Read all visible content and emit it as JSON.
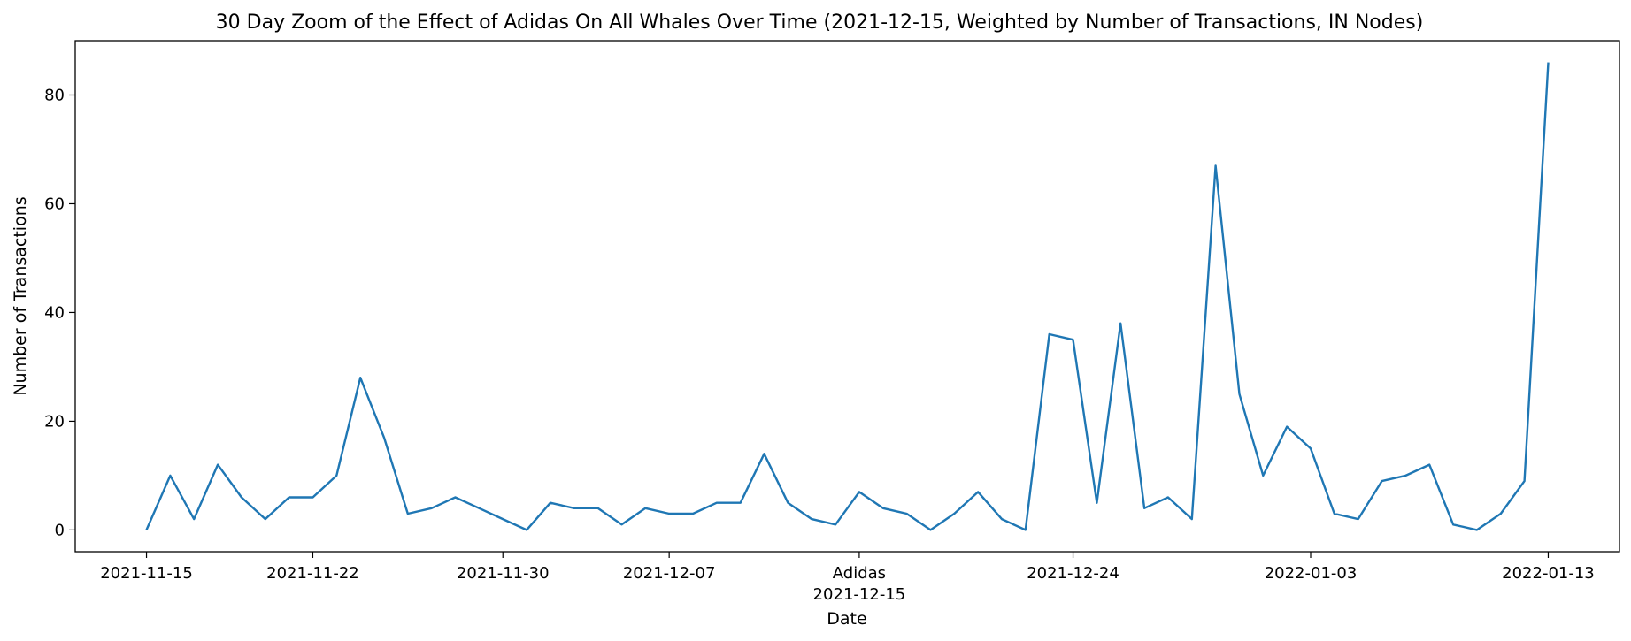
{
  "chart_data": {
    "type": "line",
    "title": "30 Day Zoom of the Effect of Adidas On All Whales Over Time (2021-12-15, Weighted by Number of Transactions, IN Nodes)",
    "xlabel": "Date",
    "ylabel": "Number of Transactions",
    "xlim": [
      "2021-11-12",
      "2022-01-16"
    ],
    "ylim": [
      -4,
      90
    ],
    "grid": false,
    "line_color": "#1f77b4",
    "x_ticks": [
      {
        "date": "2021-11-15",
        "label": "2021-11-15"
      },
      {
        "date": "2021-11-22",
        "label": "2021-11-22"
      },
      {
        "date": "2021-11-30",
        "label": "2021-11-30"
      },
      {
        "date": "2021-12-07",
        "label": "2021-12-07"
      },
      {
        "date": "2021-12-15",
        "label": "2021-12-15",
        "annotation": "Adidas"
      },
      {
        "date": "2021-12-24",
        "label": "2021-12-24"
      },
      {
        "date": "2022-01-03",
        "label": "2022-01-03"
      },
      {
        "date": "2022-01-13",
        "label": "2022-01-13"
      }
    ],
    "y_ticks": [
      0,
      20,
      40,
      60,
      80
    ],
    "series": [
      {
        "x": [
          "2021-11-15",
          "2021-11-16",
          "2021-11-17",
          "2021-11-18",
          "2021-11-19",
          "2021-11-20",
          "2021-11-21",
          "2021-11-22",
          "2021-11-23",
          "2021-11-24",
          "2021-11-25",
          "2021-11-26",
          "2021-11-27",
          "2021-11-28",
          "2021-11-29",
          "2021-11-30",
          "2021-12-01",
          "2021-12-02",
          "2021-12-03",
          "2021-12-04",
          "2021-12-05",
          "2021-12-06",
          "2021-12-07",
          "2021-12-08",
          "2021-12-09",
          "2021-12-10",
          "2021-12-11",
          "2021-12-12",
          "2021-12-13",
          "2021-12-14",
          "2021-12-15",
          "2021-12-16",
          "2021-12-17",
          "2021-12-18",
          "2021-12-19",
          "2021-12-20",
          "2021-12-21",
          "2021-12-22",
          "2021-12-23",
          "2021-12-24",
          "2021-12-25",
          "2021-12-26",
          "2021-12-27",
          "2021-12-28",
          "2021-12-29",
          "2021-12-30",
          "2021-12-31",
          "2022-01-01",
          "2022-01-02",
          "2022-01-03",
          "2022-01-04",
          "2022-01-05",
          "2022-01-06",
          "2022-01-07",
          "2022-01-08",
          "2022-01-09",
          "2022-01-10",
          "2022-01-11",
          "2022-01-12",
          "2022-01-13"
        ],
        "values": [
          0,
          10,
          2,
          12,
          6,
          2,
          6,
          6,
          10,
          28,
          17,
          3,
          4,
          6,
          4,
          2,
          0,
          5,
          4,
          4,
          1,
          4,
          3,
          3,
          5,
          5,
          14,
          5,
          2,
          1,
          7,
          4,
          3,
          0,
          3,
          7,
          2,
          0,
          36,
          35,
          5,
          38,
          4,
          6,
          2,
          67,
          25,
          10,
          19,
          15,
          3,
          2,
          9,
          10,
          12,
          1,
          0,
          3,
          9,
          86
        ]
      }
    ]
  }
}
